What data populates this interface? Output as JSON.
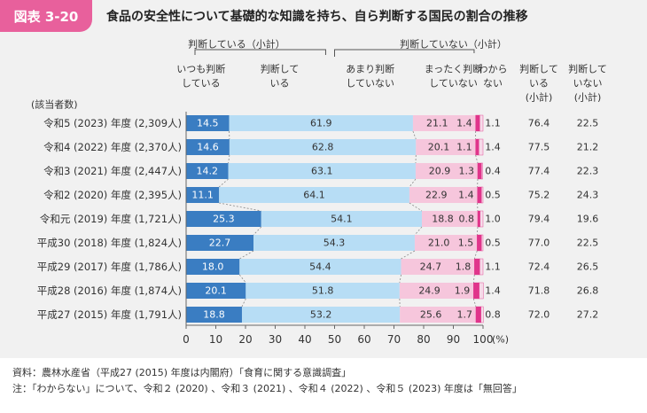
{
  "header": {
    "label": "図表 3-20",
    "title": "食品の安全性について基礎的な知識を持ち、自ら判断する国民の割合の推移"
  },
  "colors": {
    "always": "#3a7dc2",
    "somewhat": "#b7ddf5",
    "not_really": "#f6c6dc",
    "not_at_all": "#e0358b",
    "dont_know": "#f6d9e8"
  },
  "chart_data": {
    "type": "bar",
    "orientation": "horizontal",
    "stacked": true,
    "xlim": [
      0,
      100
    ],
    "x_ticks": [
      "0",
      "10",
      "20",
      "30",
      "40",
      "50",
      "60",
      "70",
      "80",
      "90",
      "100"
    ],
    "unit_label": "(%)",
    "row_header": "(該当者数)",
    "group_labels": {
      "judging": "判断している（小計）",
      "not_judging": "判断していない（小計）"
    },
    "series_headers": {
      "always": [
        "いつも判断",
        "している"
      ],
      "somewhat": [
        "判断して",
        "いる"
      ],
      "not_really": [
        "あまり判断",
        "していない"
      ],
      "not_at_all": [
        "まったく判断",
        "していない"
      ],
      "dont_know": [
        "わから",
        "ない"
      ],
      "subtotal_yes": [
        "判断して",
        "いる",
        "(小計)"
      ],
      "subtotal_no": [
        "判断して",
        "いない",
        "(小計)"
      ]
    },
    "categories": [
      "令和5 (2023) 年度 (2,309人)",
      "令和4 (2022) 年度 (2,370人)",
      "令和3 (2021) 年度 (2,447人)",
      "令和2 (2020) 年度 (2,395人)",
      "令和元 (2019) 年度 (1,721人)",
      "平成30 (2018) 年度 (1,824人)",
      "平成29 (2017) 年度 (1,786人)",
      "平成28 (2016) 年度 (1,874人)",
      "平成27 (2015) 年度 (1,791人)"
    ],
    "series": [
      {
        "key": "always",
        "name": "いつも判断している",
        "values": [
          14.5,
          14.6,
          14.2,
          11.1,
          25.3,
          22.7,
          18.0,
          20.1,
          18.8
        ]
      },
      {
        "key": "somewhat",
        "name": "判断している",
        "values": [
          61.9,
          62.8,
          63.1,
          64.1,
          54.1,
          54.3,
          54.4,
          51.8,
          53.2
        ]
      },
      {
        "key": "not_really",
        "name": "あまり判断していない",
        "values": [
          21.1,
          20.1,
          20.9,
          22.9,
          18.8,
          21.0,
          24.7,
          24.9,
          25.6
        ]
      },
      {
        "key": "not_at_all",
        "name": "まったく判断していない",
        "values": [
          1.4,
          1.1,
          1.3,
          1.4,
          0.8,
          1.5,
          1.8,
          1.9,
          1.7
        ]
      },
      {
        "key": "dont_know",
        "name": "わからない",
        "values": [
          1.1,
          1.4,
          0.4,
          0.5,
          1.0,
          0.5,
          1.1,
          1.4,
          0.8
        ]
      }
    ],
    "labels": {
      "always": [
        "14.5",
        "14.6",
        "14.2",
        "11.1",
        "25.3",
        "22.7",
        "18.0",
        "20.1",
        "18.8"
      ],
      "somewhat": [
        "61.9",
        "62.8",
        "63.1",
        "64.1",
        "54.1",
        "54.3",
        "54.4",
        "51.8",
        "53.2"
      ],
      "not_really": [
        "21.1",
        "20.1",
        "20.9",
        "22.9",
        "18.8",
        "21.0",
        "24.7",
        "24.9",
        "25.6"
      ],
      "not_at_all": [
        "1.4",
        "1.1",
        "1.3",
        "1.4",
        "0.8",
        "1.5",
        "1.8",
        "1.9",
        "1.7"
      ],
      "dont_know": [
        "1.1",
        "1.4",
        "0.4",
        "0.5",
        "1.0",
        "0.5",
        "1.1",
        "1.4",
        "0.8"
      ]
    },
    "subtotal_judging": [
      "76.4",
      "77.5",
      "77.4",
      "75.2",
      "79.4",
      "77.0",
      "72.4",
      "71.8",
      "72.0"
    ],
    "subtotal_not_judging": [
      "22.5",
      "21.2",
      "22.3",
      "24.3",
      "19.6",
      "22.5",
      "26.5",
      "26.8",
      "27.2"
    ]
  },
  "notes": {
    "source": "資料：農林水産省（平成27 (2015) 年度は内閣府）「食育に関する意識調査」",
    "note": "注：「わからない」について、令和２ (2020) 、令和３ (2021) 、令和４ (2022) 、令和５ (2023) 年度は「無回答」"
  }
}
